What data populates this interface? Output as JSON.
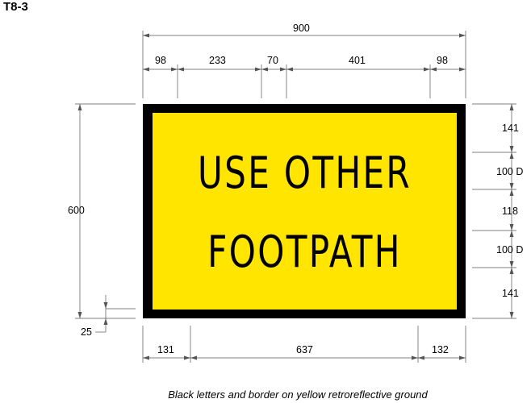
{
  "sign_code": "T8-3",
  "sign": {
    "line1": "USE OTHER",
    "line2": "FOOTPATH",
    "background_color": "#ffe500",
    "border_color": "#000000"
  },
  "dimensions": {
    "overall_width": "900",
    "top_segments": [
      "98",
      "233",
      "70",
      "401",
      "98"
    ],
    "overall_height": "600",
    "border": "25",
    "right_segments": [
      "141",
      "100 D",
      "118",
      "100 D",
      "141"
    ],
    "bottom_segments": [
      "131",
      "637",
      "132"
    ]
  },
  "caption": "Black letters and border on yellow retroreflective ground"
}
